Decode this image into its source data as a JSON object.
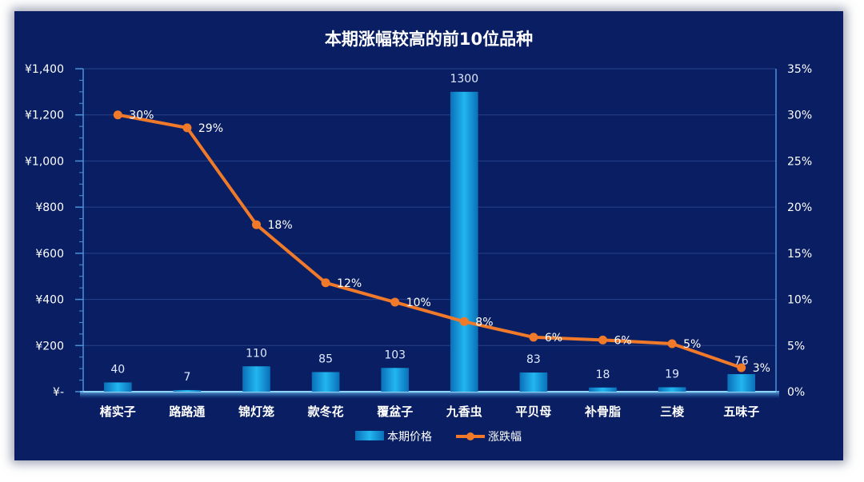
{
  "chart_data": {
    "type": "bar",
    "title": "本期涨幅较高的前10位品种",
    "categories": [
      "楮实子",
      "路路通",
      "锦灯笼",
      "款冬花",
      "覆盆子",
      "九香虫",
      "平贝母",
      "补骨脂",
      "三棱",
      "五味子"
    ],
    "series": [
      {
        "name": "本期价格",
        "type": "bar",
        "axis": "left",
        "values": [
          40,
          7,
          110,
          85,
          103,
          1300,
          83,
          18,
          19,
          76
        ],
        "labels": [
          "40",
          "7",
          "110",
          "85",
          "103",
          "1300",
          "83",
          "18",
          "19",
          "76"
        ],
        "color": "#1aa3e8"
      },
      {
        "name": "涨跌幅",
        "type": "line",
        "axis": "right",
        "values": [
          30,
          28.6,
          18.1,
          11.8,
          9.7,
          7.6,
          5.9,
          5.6,
          5.2,
          2.6
        ],
        "labels": [
          "30%",
          "29%",
          "18%",
          "12%",
          "10%",
          "8%",
          "6%",
          "6%",
          "5%",
          "3%"
        ],
        "color": "#f07a2a"
      }
    ],
    "y_left": {
      "min": 0,
      "max": 1400,
      "ticks": [
        0,
        200,
        400,
        600,
        800,
        1000,
        1200,
        1400
      ],
      "tick_labels": [
        "¥-",
        "¥200",
        "¥400",
        "¥600",
        "¥800",
        "¥1,000",
        "¥1,200",
        "¥1,400"
      ]
    },
    "y_right": {
      "min": 0,
      "max": 35,
      "ticks": [
        0,
        5,
        10,
        15,
        20,
        25,
        30,
        35
      ],
      "tick_labels": [
        "0%",
        "5%",
        "10%",
        "15%",
        "20%",
        "25%",
        "30%",
        "35%"
      ]
    },
    "grid": true,
    "legend": "bottom",
    "colors": {
      "background": "#0a1f63",
      "grid": "#26418a",
      "axis": "#4a90d9"
    }
  }
}
